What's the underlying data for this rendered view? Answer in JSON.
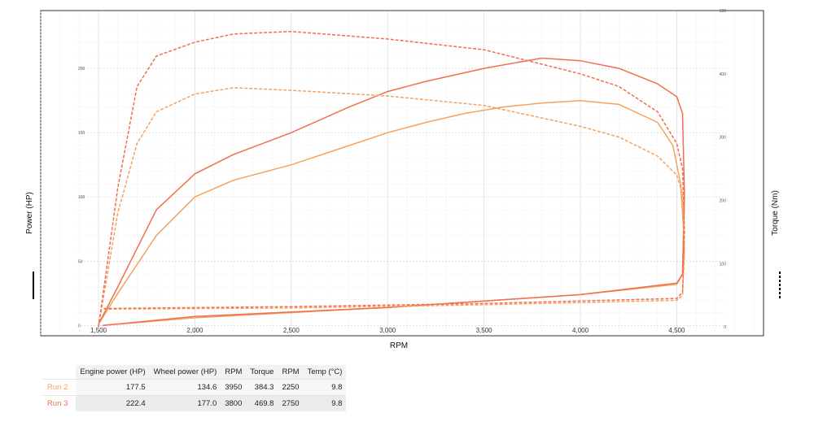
{
  "chart_data": {
    "type": "line",
    "xlabel": "RPM",
    "ylabel": "Power (HP)",
    "y2label": "Torque (Nm)",
    "xlim": [
      1200,
      4950
    ],
    "ylim": [
      -8,
      245
    ],
    "y2lim": [
      -14,
      500
    ],
    "x_ticks": [
      1500,
      2000,
      2500,
      3000,
      3500,
      4000,
      4500
    ],
    "x_tick_labels": [
      "1,500",
      "2,000",
      "2,500",
      "3,000",
      "3,500",
      "4,000",
      "4,500"
    ],
    "y_ticks": [
      0,
      50,
      100,
      150,
      200
    ],
    "y_tick_labels": [
      "0",
      "50",
      "100",
      "150",
      "200"
    ],
    "y2_ticks": [
      0,
      100,
      200,
      300,
      400,
      500
    ],
    "y2_tick_labels": [
      "0",
      "100",
      "200",
      "300",
      "400",
      "500"
    ],
    "grid": true,
    "colors": {
      "run2": "#f5a25d",
      "run3": "#ef6f4f"
    },
    "series": [
      {
        "run": "Run 2",
        "quantity": "power",
        "axis": "left",
        "style": "solid",
        "color": "#f5a25d",
        "x": [
          1500,
          1600,
          1800,
          2000,
          2200,
          2500,
          2800,
          3000,
          3200,
          3400,
          3600,
          3800,
          4000,
          4200,
          4400,
          4480,
          4520,
          4535,
          4530,
          4500,
          4000,
          3000,
          2000,
          1520
        ],
        "y": [
          1,
          25,
          70,
          100,
          113,
          125,
          140,
          150,
          158,
          165,
          170,
          173,
          175,
          172,
          158,
          140,
          110,
          75,
          40,
          32,
          24,
          14,
          6,
          0
        ]
      },
      {
        "run": "Run 3",
        "quantity": "power",
        "axis": "left",
        "style": "solid",
        "color": "#ef6f4f",
        "x": [
          1500,
          1600,
          1800,
          2000,
          2200,
          2500,
          2800,
          3000,
          3200,
          3500,
          3800,
          4000,
          4200,
          4400,
          4500,
          4530,
          4540,
          4530,
          4500,
          4000,
          3000,
          2000,
          1520
        ],
        "y": [
          1,
          30,
          90,
          118,
          133,
          150,
          170,
          182,
          190,
          200,
          208,
          206,
          200,
          188,
          178,
          165,
          100,
          40,
          33,
          24,
          14,
          7,
          0
        ]
      },
      {
        "run": "Run 2",
        "quantity": "torque",
        "axis": "right",
        "style": "dashed",
        "color": "#f5a25d",
        "x": [
          1500,
          1600,
          1700,
          1800,
          2000,
          2200,
          2500,
          3000,
          3500,
          4000,
          4200,
          4400,
          4500,
          4530,
          4540,
          4530,
          4500,
          3500,
          2500,
          1520
        ],
        "y": [
          0,
          180,
          290,
          340,
          368,
          378,
          374,
          365,
          350,
          317,
          300,
          270,
          240,
          210,
          120,
          50,
          42,
          35,
          30,
          28
        ]
      },
      {
        "run": "Run 3",
        "quantity": "torque",
        "axis": "right",
        "style": "dashed",
        "color": "#ef6f4f",
        "x": [
          1500,
          1600,
          1700,
          1800,
          2000,
          2200,
          2500,
          3000,
          3500,
          4000,
          4200,
          4400,
          4500,
          4530,
          4540,
          4530,
          4500,
          3500,
          2500,
          1520
        ],
        "y": [
          0,
          220,
          380,
          428,
          450,
          463,
          467,
          455,
          438,
          400,
          380,
          340,
          290,
          250,
          150,
          55,
          45,
          37,
          32,
          29
        ]
      }
    ]
  },
  "results_table": {
    "headers": [
      "Engine power (HP)",
      "Wheel power (HP)",
      "RPM",
      "Torque",
      "RPM",
      "Temp (°C)"
    ],
    "rows": [
      {
        "name": "Run 2",
        "color": "#f5a25d",
        "values": [
          "177.5",
          "134.6",
          "3950",
          "384.3",
          "2250",
          "9.8"
        ]
      },
      {
        "name": "Run 3",
        "color": "#ef6f4f",
        "values": [
          "222.4",
          "177.0",
          "3800",
          "469.8",
          "2750",
          "9.8"
        ]
      }
    ]
  }
}
